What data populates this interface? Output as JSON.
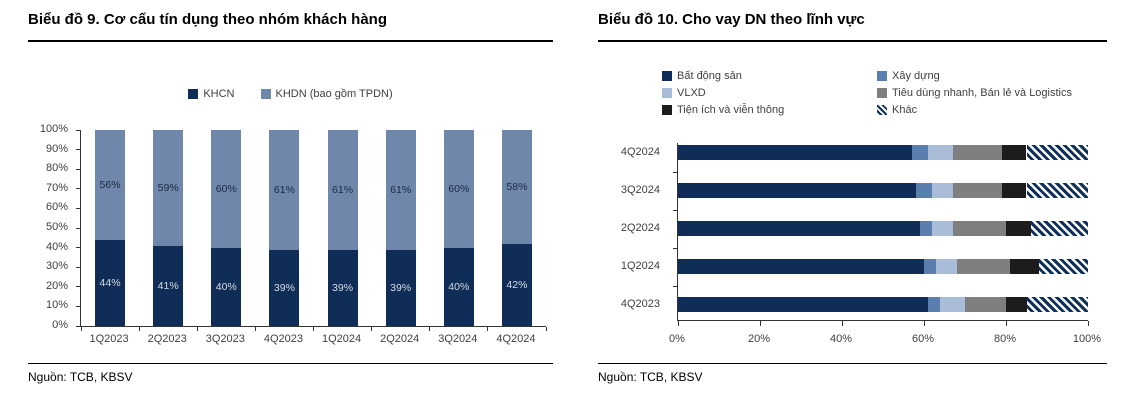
{
  "accent_colors": {
    "navy": "#0f2d56",
    "blue_gray": "#6f87ab",
    "axis": "#333333",
    "text_gray": "#404040"
  },
  "chart_data": [
    {
      "type": "bar",
      "stacked": true,
      "orientation": "vertical",
      "title": "Biểu đồ 9. Cơ cấu tín dụng theo nhóm khách hàng",
      "source": "Nguồn: TCB, KBSV",
      "legend_position": "top",
      "categories": [
        "1Q2023",
        "2Q2023",
        "3Q2023",
        "4Q2023",
        "1Q2024",
        "2Q2024",
        "3Q2024",
        "4Q2024"
      ],
      "series": [
        {
          "name": "KHCN",
          "color": "#0f2d56",
          "label_color": "#d6dce4",
          "values": [
            44,
            41,
            40,
            39,
            39,
            39,
            40,
            42
          ]
        },
        {
          "name": "KHDN (bao gồm TPDN)",
          "color": "#6f87ab",
          "label_color": "#1b2a41",
          "values": [
            56,
            59,
            60,
            61,
            61,
            61,
            60,
            58
          ]
        }
      ],
      "ylim": [
        0,
        100
      ],
      "ytick_step": 10,
      "ytick_suffix": "%",
      "value_suffix": "%",
      "grid": false
    },
    {
      "type": "bar",
      "stacked": true,
      "orientation": "horizontal",
      "title": "Biểu đồ 10. Cho vay DN theo lĩnh vực",
      "source": "Nguồn: TCB, KBSV",
      "legend_position": "top",
      "categories": [
        "4Q2024",
        "3Q2024",
        "2Q2024",
        "1Q2024",
        "4Q2023"
      ],
      "series": [
        {
          "name": "Bất động sản",
          "color": "#0f2d56",
          "values": [
            57,
            58,
            59,
            60,
            61
          ]
        },
        {
          "name": "Xây dựng",
          "color": "#5a7fae",
          "values": [
            4,
            4,
            3,
            3,
            3
          ]
        },
        {
          "name": "VLXD",
          "color": "#a9bdd9",
          "values": [
            6,
            5,
            5,
            5,
            6
          ]
        },
        {
          "name": "Tiêu dùng nhanh, Bán lẻ và Logistics",
          "color": "#7f7f7f",
          "values": [
            12,
            12,
            13,
            13,
            10
          ]
        },
        {
          "name": "Tiện ích và viễn thông",
          "color": "#1c1c1c",
          "values": [
            6,
            6,
            6,
            7,
            5
          ]
        },
        {
          "name": "Khác",
          "color": "#10305b",
          "pattern": "diagonal-hatch",
          "values": [
            15,
            15,
            14,
            12,
            15
          ]
        }
      ],
      "xlim": [
        0,
        100
      ],
      "xticks": [
        "0%",
        "20%",
        "40%",
        "60%",
        "80%",
        "100%"
      ],
      "grid": false
    }
  ]
}
